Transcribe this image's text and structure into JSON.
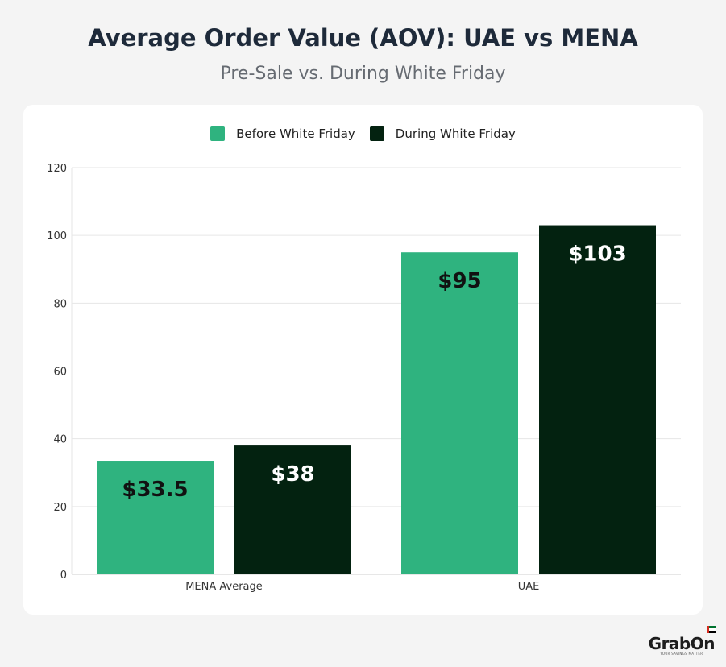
{
  "title": "Average Order Value (AOV): UAE vs MENA",
  "subtitle": "Pre-Sale vs. During White Friday",
  "colors": {
    "before": "#2fb37f",
    "during": "#032210",
    "grid": "#e6e6e6",
    "axis": "#cfcfcf"
  },
  "logo": {
    "text": "GrabOn",
    "tagline": "YOUR SAVINGS MATTER"
  },
  "chart_data": {
    "type": "bar",
    "categories": [
      "MENA Average",
      "UAE"
    ],
    "series": [
      {
        "name": "Before White Friday",
        "values": [
          33.5,
          95
        ],
        "labels": [
          "$33.5",
          "$95"
        ]
      },
      {
        "name": "During White Friday",
        "values": [
          38,
          103
        ],
        "labels": [
          "$38",
          "$103"
        ]
      }
    ],
    "ylim": [
      0,
      120
    ],
    "yticks": [
      0,
      20,
      40,
      60,
      80,
      100,
      120
    ],
    "grid": true,
    "legend": "top-center"
  }
}
